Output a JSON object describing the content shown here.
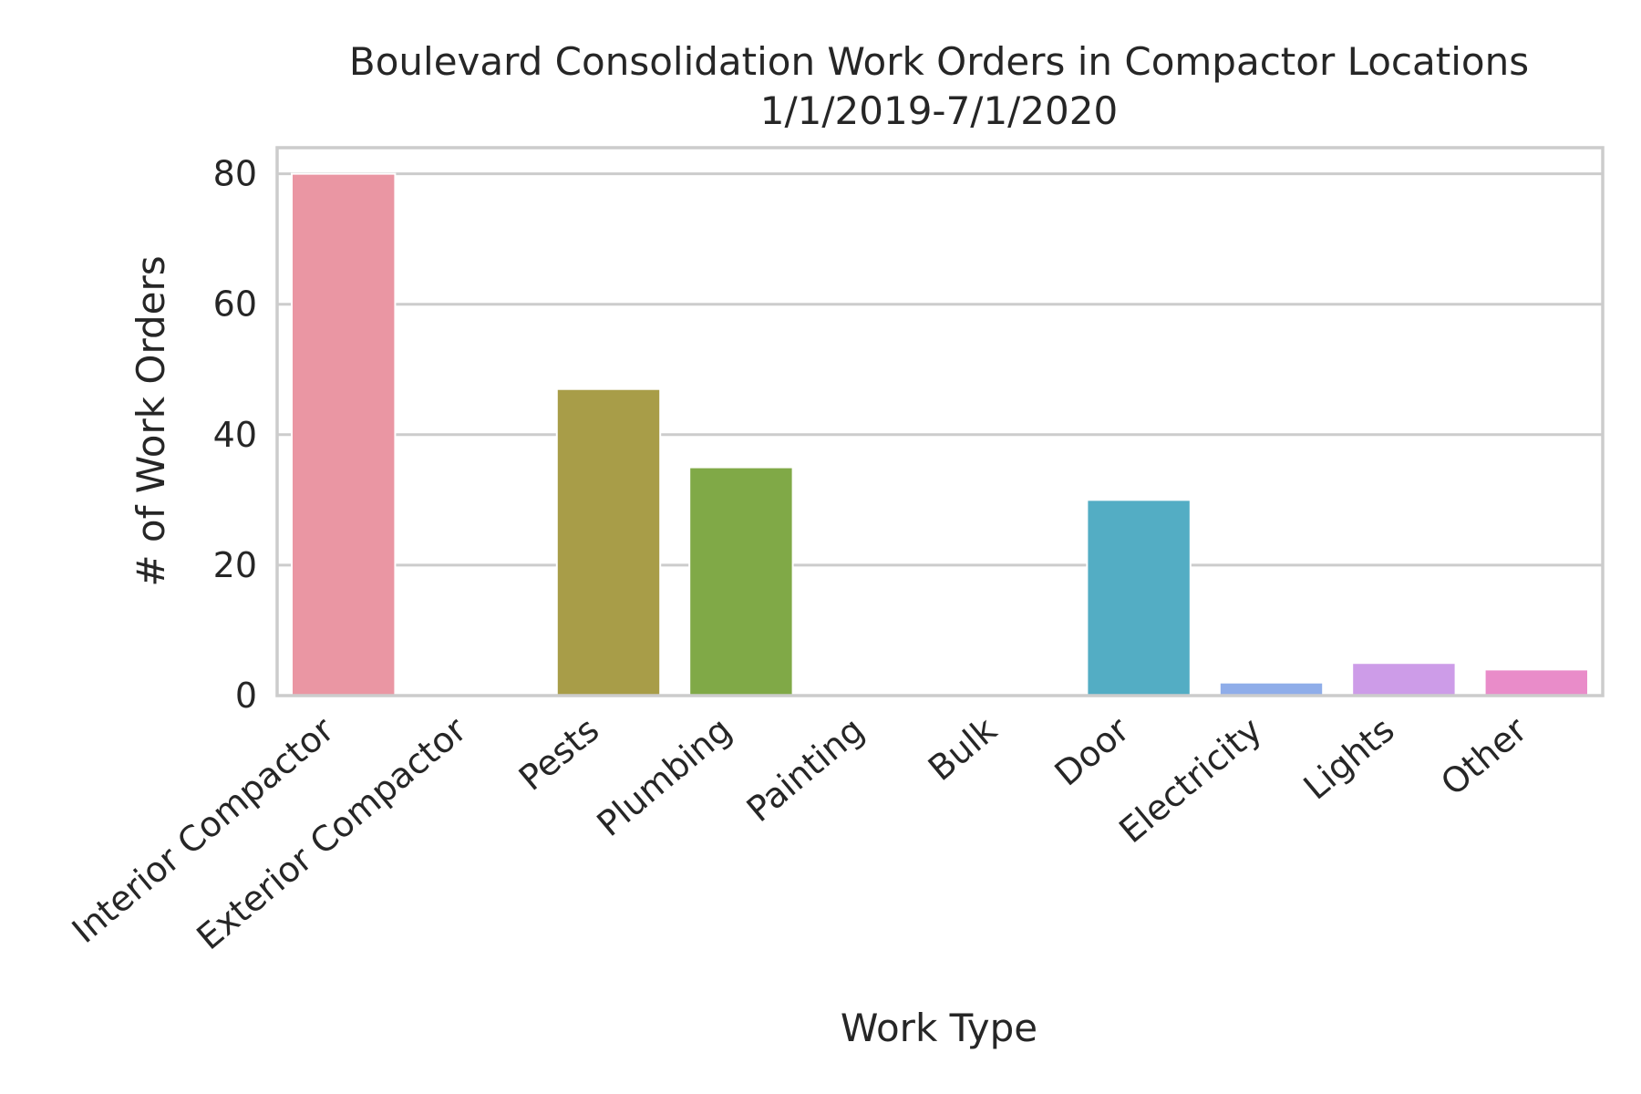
{
  "chart_data": {
    "type": "bar",
    "title": "Boulevard Consolidation Work Orders in Compactor Locations",
    "subtitle": "1/1/2019-7/1/2020",
    "xlabel": "Work Type",
    "ylabel": "# of Work Orders",
    "categories": [
      "Interior Compactor",
      "Exterior Compactor",
      "Pests",
      "Plumbing",
      "Painting",
      "Bulk",
      "Door",
      "Electricity",
      "Lights",
      "Other"
    ],
    "values": [
      80,
      0,
      47,
      35,
      0,
      0,
      30,
      2,
      5,
      4
    ],
    "colors": [
      "#ea96a3",
      "#cfa160",
      "#a89d48",
      "#80a947",
      "#4fb08d",
      "#52b2a8",
      "#53adc4",
      "#8fade9",
      "#cd9ce8",
      "#e98cc9"
    ],
    "ylim": [
      0,
      84
    ],
    "yticks": [
      0,
      20,
      40,
      60,
      80
    ],
    "grid": true,
    "legend": "none"
  }
}
